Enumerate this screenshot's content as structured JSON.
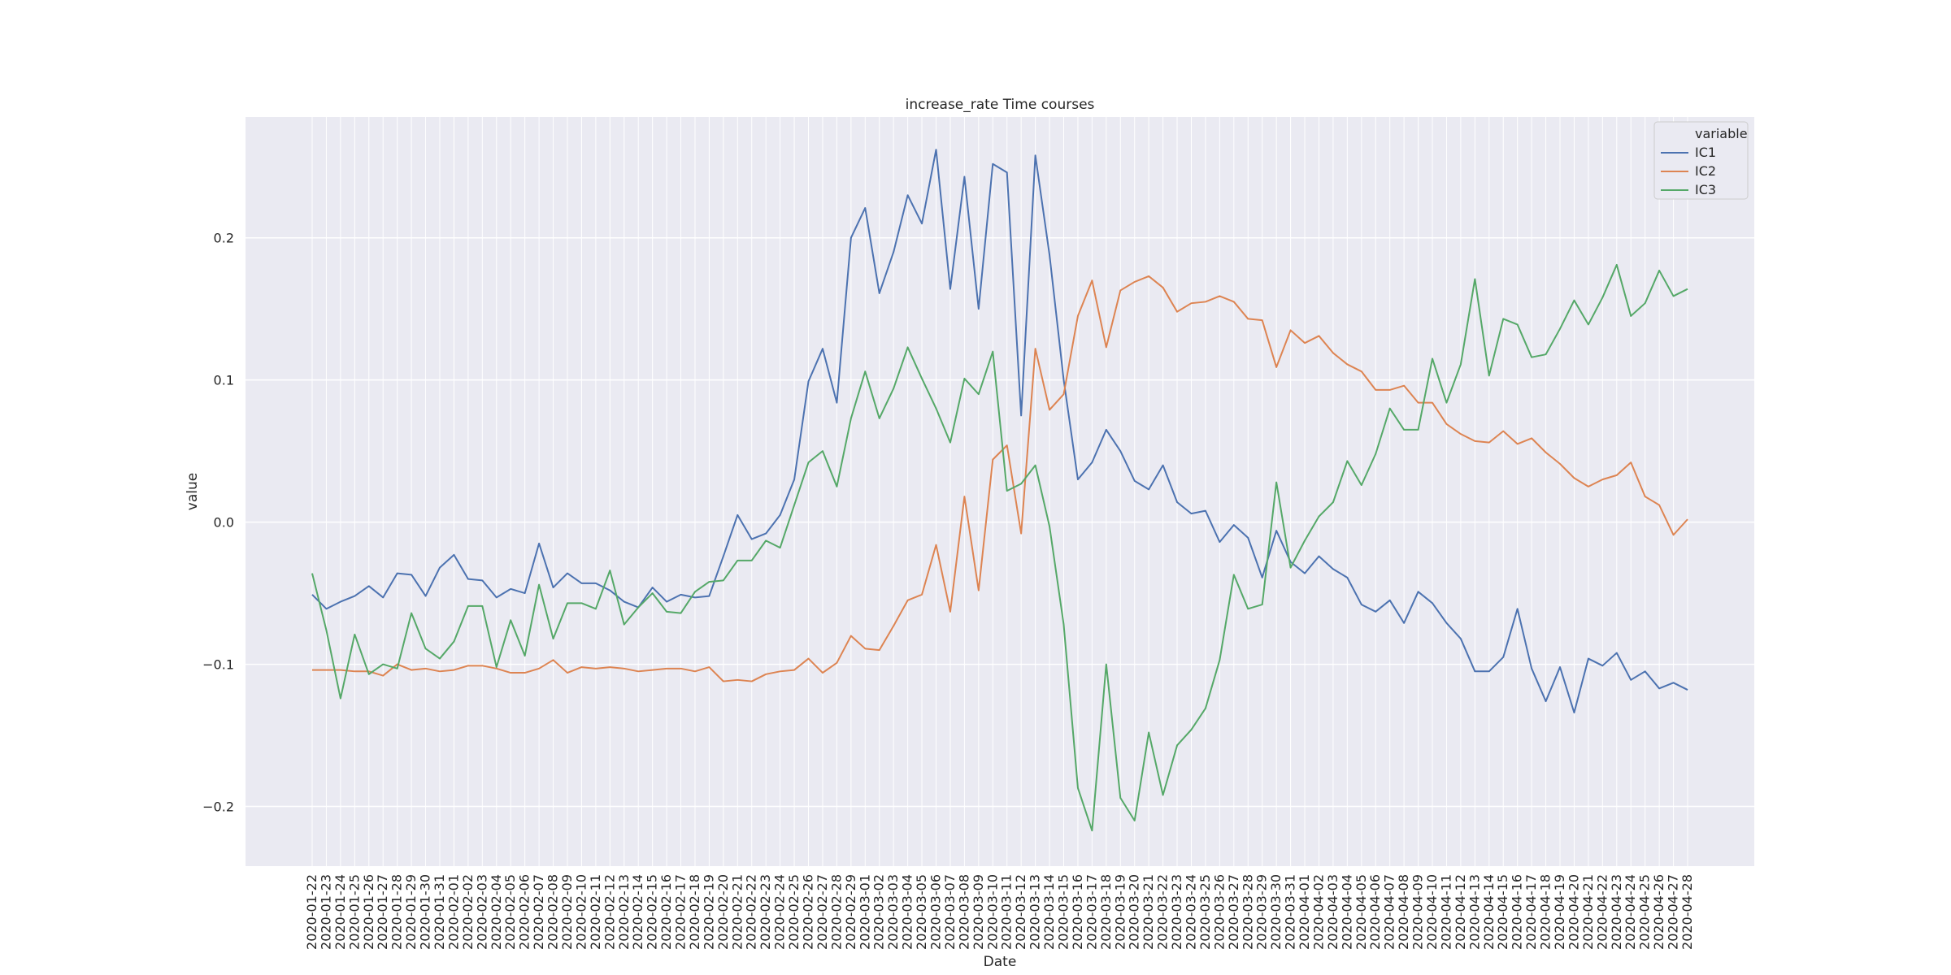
{
  "chart_data": {
    "type": "line",
    "title": "increase_rate Time courses",
    "xlabel": "Date",
    "ylabel": "value",
    "ylim": [
      -0.242,
      0.285
    ],
    "yticks": [
      -0.2,
      -0.1,
      0.0,
      0.1,
      0.2
    ],
    "ytick_labels": [
      "−0.2",
      "−0.1",
      "0.0",
      "0.1",
      "0.2"
    ],
    "grid": true,
    "legend_title": "variable",
    "legend_position": "top-right",
    "categories": [
      "2020-01-22",
      "2020-01-23",
      "2020-01-24",
      "2020-01-25",
      "2020-01-26",
      "2020-01-27",
      "2020-01-28",
      "2020-01-29",
      "2020-01-30",
      "2020-01-31",
      "2020-02-01",
      "2020-02-02",
      "2020-02-03",
      "2020-02-04",
      "2020-02-05",
      "2020-02-06",
      "2020-02-07",
      "2020-02-08",
      "2020-02-09",
      "2020-02-10",
      "2020-02-11",
      "2020-02-12",
      "2020-02-13",
      "2020-02-14",
      "2020-02-15",
      "2020-02-16",
      "2020-02-17",
      "2020-02-18",
      "2020-02-19",
      "2020-02-20",
      "2020-02-21",
      "2020-02-22",
      "2020-02-23",
      "2020-02-24",
      "2020-02-25",
      "2020-02-26",
      "2020-02-27",
      "2020-02-28",
      "2020-02-29",
      "2020-03-01",
      "2020-03-02",
      "2020-03-03",
      "2020-03-04",
      "2020-03-05",
      "2020-03-06",
      "2020-03-07",
      "2020-03-08",
      "2020-03-09",
      "2020-03-10",
      "2020-03-11",
      "2020-03-12",
      "2020-03-13",
      "2020-03-14",
      "2020-03-15",
      "2020-03-16",
      "2020-03-17",
      "2020-03-18",
      "2020-03-19",
      "2020-03-20",
      "2020-03-21",
      "2020-03-22",
      "2020-03-23",
      "2020-03-24",
      "2020-03-25",
      "2020-03-26",
      "2020-03-27",
      "2020-03-28",
      "2020-03-29",
      "2020-03-30",
      "2020-03-31",
      "2020-04-01",
      "2020-04-02",
      "2020-04-03",
      "2020-04-04",
      "2020-04-05",
      "2020-04-06",
      "2020-04-07",
      "2020-04-08",
      "2020-04-09",
      "2020-04-10",
      "2020-04-11",
      "2020-04-12",
      "2020-04-13",
      "2020-04-14",
      "2020-04-15",
      "2020-04-16",
      "2020-04-17",
      "2020-04-18",
      "2020-04-19",
      "2020-04-20",
      "2020-04-21",
      "2020-04-22",
      "2020-04-23",
      "2020-04-24",
      "2020-04-25",
      "2020-04-26",
      "2020-04-27",
      "2020-04-28"
    ],
    "series": [
      {
        "name": "IC1",
        "color": "#4c72b0",
        "values": [
          -0.051,
          -0.061,
          -0.056,
          -0.052,
          -0.045,
          -0.053,
          -0.036,
          -0.037,
          -0.052,
          -0.032,
          -0.023,
          -0.04,
          -0.041,
          -0.053,
          -0.047,
          -0.05,
          -0.015,
          -0.046,
          -0.036,
          -0.043,
          -0.043,
          -0.048,
          -0.056,
          -0.06,
          -0.046,
          -0.056,
          -0.051,
          -0.053,
          -0.052,
          -0.024,
          0.005,
          -0.012,
          -0.008,
          0.005,
          0.03,
          0.099,
          0.122,
          0.084,
          0.2,
          0.221,
          0.161,
          0.19,
          0.23,
          0.21,
          0.262,
          0.164,
          0.243,
          0.15,
          0.252,
          0.246,
          0.075,
          0.258,
          0.188,
          0.1,
          0.03,
          0.042,
          0.065,
          0.05,
          0.029,
          0.023,
          0.04,
          0.014,
          0.006,
          0.008,
          -0.014,
          -0.002,
          -0.011,
          -0.039,
          -0.006,
          -0.028,
          -0.036,
          -0.024,
          -0.033,
          -0.039,
          -0.058,
          -0.063,
          -0.055,
          -0.071,
          -0.049,
          -0.057,
          -0.071,
          -0.082,
          -0.105,
          -0.105,
          -0.095,
          -0.061,
          -0.103,
          -0.126,
          -0.102,
          -0.134,
          -0.096,
          -0.101,
          -0.092,
          -0.111,
          -0.105,
          -0.117,
          -0.113,
          -0.118
        ]
      },
      {
        "name": "IC2",
        "color": "#dd8452",
        "values": [
          -0.104,
          -0.104,
          -0.104,
          -0.105,
          -0.105,
          -0.108,
          -0.1,
          -0.104,
          -0.103,
          -0.105,
          -0.104,
          -0.101,
          -0.101,
          -0.103,
          -0.106,
          -0.106,
          -0.103,
          -0.097,
          -0.106,
          -0.102,
          -0.103,
          -0.102,
          -0.103,
          -0.105,
          -0.104,
          -0.103,
          -0.103,
          -0.105,
          -0.102,
          -0.112,
          -0.111,
          -0.112,
          -0.107,
          -0.105,
          -0.104,
          -0.096,
          -0.106,
          -0.099,
          -0.08,
          -0.089,
          -0.09,
          -0.073,
          -0.055,
          -0.051,
          -0.016,
          -0.063,
          0.018,
          -0.048,
          0.044,
          0.054,
          -0.008,
          0.122,
          0.079,
          0.09,
          0.145,
          0.17,
          0.123,
          0.163,
          0.169,
          0.173,
          0.165,
          0.148,
          0.154,
          0.155,
          0.159,
          0.155,
          0.143,
          0.142,
          0.109,
          0.135,
          0.126,
          0.131,
          0.119,
          0.111,
          0.106,
          0.093,
          0.093,
          0.096,
          0.084,
          0.084,
          0.069,
          0.062,
          0.057,
          0.056,
          0.064,
          0.055,
          0.059,
          0.049,
          0.041,
          0.031,
          0.025,
          0.03,
          0.033,
          0.042,
          0.018,
          0.012,
          -0.009,
          0.002
        ]
      },
      {
        "name": "IC3",
        "color": "#55a868",
        "values": [
          -0.036,
          -0.076,
          -0.124,
          -0.079,
          -0.107,
          -0.1,
          -0.103,
          -0.064,
          -0.089,
          -0.096,
          -0.084,
          -0.059,
          -0.059,
          -0.102,
          -0.069,
          -0.094,
          -0.044,
          -0.082,
          -0.057,
          -0.057,
          -0.061,
          -0.034,
          -0.072,
          -0.06,
          -0.05,
          -0.063,
          -0.064,
          -0.049,
          -0.042,
          -0.041,
          -0.027,
          -0.027,
          -0.013,
          -0.018,
          0.012,
          0.042,
          0.05,
          0.025,
          0.073,
          0.106,
          0.073,
          0.094,
          0.123,
          0.101,
          0.08,
          0.056,
          0.101,
          0.09,
          0.12,
          0.022,
          0.027,
          0.04,
          -0.003,
          -0.072,
          -0.187,
          -0.217,
          -0.1,
          -0.194,
          -0.21,
          -0.148,
          -0.192,
          -0.157,
          -0.146,
          -0.131,
          -0.097,
          -0.037,
          -0.061,
          -0.058,
          0.028,
          -0.032,
          -0.013,
          0.004,
          0.014,
          0.043,
          0.026,
          0.048,
          0.08,
          0.065,
          0.065,
          0.115,
          0.084,
          0.111,
          0.171,
          0.103,
          0.143,
          0.139,
          0.116,
          0.118,
          0.136,
          0.156,
          0.139,
          0.158,
          0.181,
          0.145,
          0.154,
          0.177,
          0.159,
          0.164
        ]
      }
    ]
  }
}
